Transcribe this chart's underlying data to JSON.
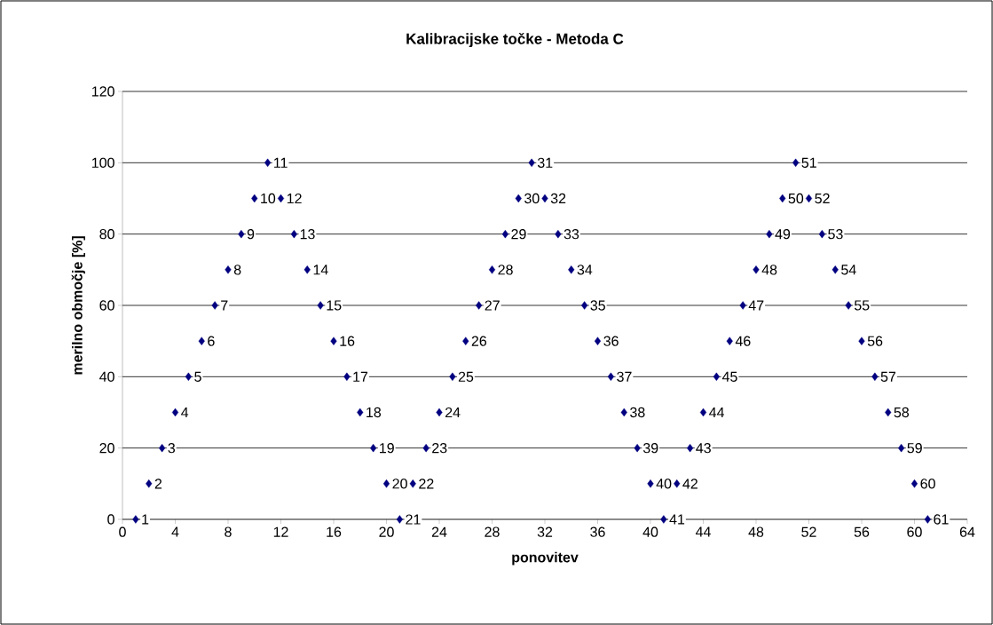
{
  "chart_data": {
    "type": "scatter",
    "title": "Kalibracijske točke - Metoda C",
    "xlabel": "ponovitev",
    "ylabel": "merilno območje [%]",
    "x": [
      1,
      2,
      3,
      4,
      5,
      6,
      7,
      8,
      9,
      10,
      11,
      12,
      13,
      14,
      15,
      16,
      17,
      18,
      19,
      20,
      21,
      22,
      23,
      24,
      25,
      26,
      27,
      28,
      29,
      30,
      31,
      32,
      33,
      34,
      35,
      36,
      37,
      38,
      39,
      40,
      41,
      42,
      43,
      44,
      45,
      46,
      47,
      48,
      49,
      50,
      51,
      52,
      53,
      54,
      55,
      56,
      57,
      58,
      59,
      60,
      61
    ],
    "values": [
      0,
      10,
      20,
      30,
      40,
      50,
      60,
      70,
      80,
      90,
      100,
      90,
      80,
      70,
      60,
      50,
      40,
      30,
      20,
      10,
      0,
      10,
      20,
      30,
      40,
      50,
      60,
      70,
      80,
      90,
      100,
      90,
      80,
      70,
      60,
      50,
      40,
      30,
      20,
      10,
      0,
      10,
      20,
      30,
      40,
      50,
      60,
      70,
      80,
      90,
      100,
      90,
      80,
      70,
      60,
      50,
      40,
      30,
      20,
      10,
      0
    ],
    "annotations": [
      {
        "text": "1",
        "x": 1,
        "y": 0
      },
      {
        "text": "2",
        "x": 2,
        "y": 10
      },
      {
        "text": "3",
        "x": 3,
        "y": 20
      },
      {
        "text": "4",
        "x": 4,
        "y": 30
      },
      {
        "text": "5",
        "x": 5,
        "y": 40
      },
      {
        "text": "6",
        "x": 6,
        "y": 50
      },
      {
        "text": "7",
        "x": 7,
        "y": 60
      },
      {
        "text": "8",
        "x": 8,
        "y": 70
      },
      {
        "text": "9",
        "x": 9,
        "y": 80
      },
      {
        "text": "10",
        "x": 10,
        "y": 90
      },
      {
        "text": "11",
        "x": 11,
        "y": 100
      },
      {
        "text": "12",
        "x": 12,
        "y": 90
      },
      {
        "text": "13",
        "x": 13,
        "y": 80
      },
      {
        "text": "14",
        "x": 14,
        "y": 70
      },
      {
        "text": "15",
        "x": 15,
        "y": 60
      },
      {
        "text": "16",
        "x": 16,
        "y": 50
      },
      {
        "text": "17",
        "x": 17,
        "y": 40
      },
      {
        "text": "18",
        "x": 18,
        "y": 30
      },
      {
        "text": "19",
        "x": 19,
        "y": 20
      },
      {
        "text": "20",
        "x": 20,
        "y": 10
      },
      {
        "text": "21",
        "x": 21,
        "y": 0
      },
      {
        "text": "22",
        "x": 22,
        "y": 10
      },
      {
        "text": "23",
        "x": 23,
        "y": 20
      },
      {
        "text": "24",
        "x": 24,
        "y": 30
      },
      {
        "text": "25",
        "x": 25,
        "y": 40
      },
      {
        "text": "26",
        "x": 26,
        "y": 50
      },
      {
        "text": "27",
        "x": 27,
        "y": 60
      },
      {
        "text": "28",
        "x": 28,
        "y": 70
      },
      {
        "text": "29",
        "x": 29,
        "y": 80
      },
      {
        "text": "30",
        "x": 30,
        "y": 90
      },
      {
        "text": "31",
        "x": 31,
        "y": 100
      },
      {
        "text": "32",
        "x": 32,
        "y": 90
      },
      {
        "text": "33",
        "x": 33,
        "y": 80
      },
      {
        "text": "34",
        "x": 34,
        "y": 70
      },
      {
        "text": "35",
        "x": 35,
        "y": 60
      },
      {
        "text": "36",
        "x": 36,
        "y": 50
      },
      {
        "text": "37",
        "x": 37,
        "y": 40
      },
      {
        "text": "38",
        "x": 38,
        "y": 30
      },
      {
        "text": "39",
        "x": 39,
        "y": 20
      },
      {
        "text": "40",
        "x": 40,
        "y": 10
      },
      {
        "text": "41",
        "x": 41,
        "y": 0
      },
      {
        "text": "42",
        "x": 42,
        "y": 10
      },
      {
        "text": "43",
        "x": 43,
        "y": 20
      },
      {
        "text": "44",
        "x": 44,
        "y": 30
      },
      {
        "text": "45",
        "x": 45,
        "y": 40
      },
      {
        "text": "46",
        "x": 46,
        "y": 50
      },
      {
        "text": "47",
        "x": 47,
        "y": 60
      },
      {
        "text": "48",
        "x": 48,
        "y": 70
      },
      {
        "text": "49",
        "x": 49,
        "y": 80
      },
      {
        "text": "50",
        "x": 50,
        "y": 90
      },
      {
        "text": "51",
        "x": 51,
        "y": 100
      },
      {
        "text": "52",
        "x": 52,
        "y": 90
      },
      {
        "text": "53",
        "x": 53,
        "y": 80
      },
      {
        "text": "54",
        "x": 54,
        "y": 70
      },
      {
        "text": "55",
        "x": 55,
        "y": 60
      },
      {
        "text": "56",
        "x": 56,
        "y": 50
      },
      {
        "text": "57",
        "x": 57,
        "y": 40
      },
      {
        "text": "58",
        "x": 58,
        "y": 30
      },
      {
        "text": "59",
        "x": 59,
        "y": 20
      },
      {
        "text": "60",
        "x": 60,
        "y": 10
      },
      {
        "text": "61",
        "x": 61,
        "y": 0
      }
    ],
    "color": "#000080",
    "marker": "diamond",
    "grid": "y",
    "xlim": [
      0,
      64
    ],
    "xticks": [
      0,
      4,
      8,
      12,
      16,
      20,
      24,
      28,
      32,
      36,
      40,
      44,
      48,
      52,
      56,
      60,
      64
    ],
    "ylim": [
      0,
      120
    ],
    "yticks": [
      0,
      20,
      40,
      60,
      80,
      100,
      120
    ]
  }
}
